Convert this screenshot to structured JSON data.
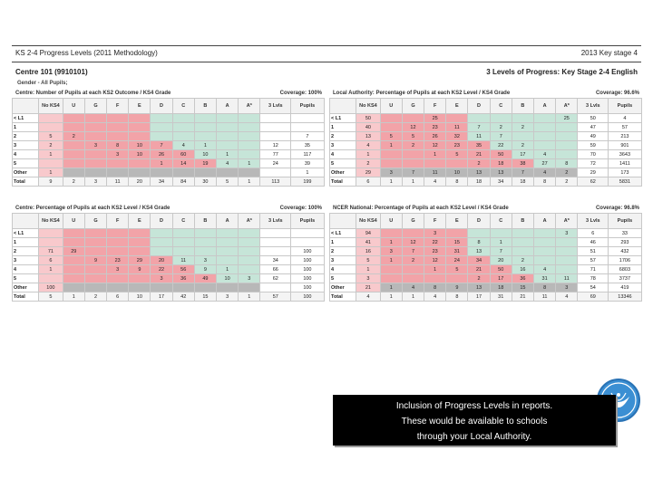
{
  "report": {
    "title": "KS 2-4 Progress Levels (2011 Methodology)",
    "year_stage": "2013  Key stage 4",
    "centre": "Centre 101 (9910101)",
    "progress_title": "3 Levels of Progress: Key Stage 2-4 English",
    "subtitle": "Gender - All Pupils;",
    "colors": {
      "red": "#f2a3a8",
      "pink": "#f8c9cc",
      "green": "#c6e5d8",
      "grey": "#b8b8b8"
    },
    "tables": [
      {
        "title": "Centre: Number of Pupils at each KS2 Outcome / KS4 Grade",
        "coverage": "Coverage: 100%",
        "columns": [
          "",
          "No KS4",
          "U",
          "G",
          "F",
          "E",
          "D",
          "C",
          "B",
          "A",
          "A*",
          "3 Lvls",
          "Pupils"
        ],
        "rows": [
          {
            "label": "< L1",
            "cells": [
              "",
              "",
              "",
              "",
              "",
              "",
              "",
              "",
              "",
              "",
              "",
              ""
            ]
          },
          {
            "label": "1",
            "cells": [
              "",
              "",
              "",
              "",
              "",
              "",
              "",
              "",
              "",
              "",
              "",
              ""
            ]
          },
          {
            "label": "2",
            "cells": [
              "5",
              "2",
              "",
              "",
              "",
              "",
              "",
              "",
              "",
              "",
              "",
              "7"
            ]
          },
          {
            "label": "3",
            "cells": [
              "2",
              "",
              "3",
              "8",
              "10",
              "7",
              "4",
              "1",
              "",
              "",
              "12",
              "35"
            ]
          },
          {
            "label": "4",
            "cells": [
              "1",
              "",
              "",
              "3",
              "10",
              "26",
              "60",
              "10",
              "1",
              "",
              "77",
              "117"
            ]
          },
          {
            "label": "5",
            "cells": [
              "",
              "",
              "",
              "",
              "",
              "1",
              "14",
              "19",
              "4",
              "1",
              "24",
              "39"
            ]
          },
          {
            "label": "Other",
            "cells": [
              "1",
              "",
              "",
              "",
              "",
              "",
              "",
              "",
              "",
              "",
              "",
              "1"
            ]
          },
          {
            "label": "Total",
            "cells": [
              "9",
              "2",
              "3",
              "11",
              "20",
              "34",
              "84",
              "30",
              "5",
              "1",
              "113",
              "199"
            ]
          }
        ]
      },
      {
        "title": "Local Authority: Percentage of Pupils at each KS2 Level / KS4 Grade",
        "coverage": "Coverage: 96.6%",
        "columns": [
          "",
          "No KS4",
          "U",
          "G",
          "F",
          "E",
          "D",
          "C",
          "B",
          "A",
          "A*",
          "3 Lvls",
          "Pupils"
        ],
        "rows": [
          {
            "label": "< L1",
            "cells": [
              "50",
              "",
              "",
              "25",
              "",
              "",
              "",
              "",
              "",
              "25",
              "50",
              "4"
            ]
          },
          {
            "label": "1",
            "cells": [
              "40",
              "",
              "12",
              "23",
              "11",
              "7",
              "2",
              "2",
              "",
              "",
              "47",
              "57"
            ]
          },
          {
            "label": "2",
            "cells": [
              "13",
              "5",
              "5",
              "26",
              "32",
              "11",
              "7",
              "",
              "",
              "",
              "49",
              "213"
            ]
          },
          {
            "label": "3",
            "cells": [
              "4",
              "1",
              "2",
              "12",
              "23",
              "35",
              "22",
              "2",
              "",
              "",
              "59",
              "901"
            ]
          },
          {
            "label": "4",
            "cells": [
              "1",
              "",
              "",
              "1",
              "5",
              "21",
              "50",
              "17",
              "4",
              "",
              "70",
              "3643"
            ]
          },
          {
            "label": "5",
            "cells": [
              "2",
              "",
              "",
              "",
              "",
              "2",
              "18",
              "38",
              "27",
              "8",
              "72",
              "1411"
            ]
          },
          {
            "label": "Other",
            "cells": [
              "29",
              "3",
              "7",
              "11",
              "10",
              "13",
              "13",
              "7",
              "4",
              "2",
              "29",
              "173"
            ]
          },
          {
            "label": "Total",
            "cells": [
              "6",
              "1",
              "1",
              "4",
              "8",
              "18",
              "34",
              "18",
              "8",
              "2",
              "62",
              "5831"
            ]
          }
        ]
      },
      {
        "title": "Centre: Percentage of Pupils at each KS2 Level / KS4 Grade",
        "coverage": "Coverage: 100%",
        "columns": [
          "",
          "No KS4",
          "U",
          "G",
          "F",
          "E",
          "D",
          "C",
          "B",
          "A",
          "A*",
          "3 Lvls",
          "Pupils"
        ],
        "rows": [
          {
            "label": "< L1",
            "cells": [
              "",
              "",
              "",
              "",
              "",
              "",
              "",
              "",
              "",
              "",
              "",
              ""
            ]
          },
          {
            "label": "1",
            "cells": [
              "",
              "",
              "",
              "",
              "",
              "",
              "",
              "",
              "",
              "",
              "",
              ""
            ]
          },
          {
            "label": "2",
            "cells": [
              "71",
              "29",
              "",
              "",
              "",
              "",
              "",
              "",
              "",
              "",
              "",
              "100"
            ]
          },
          {
            "label": "3",
            "cells": [
              "6",
              "",
              "9",
              "23",
              "29",
              "20",
              "11",
              "3",
              "",
              "",
              "34",
              "100"
            ]
          },
          {
            "label": "4",
            "cells": [
              "1",
              "",
              "",
              "3",
              "9",
              "22",
              "56",
              "9",
              "1",
              "",
              "66",
              "100"
            ]
          },
          {
            "label": "5",
            "cells": [
              "",
              "",
              "",
              "",
              "",
              "3",
              "36",
              "49",
              "10",
              "3",
              "62",
              "100"
            ]
          },
          {
            "label": "Other",
            "cells": [
              "100",
              "",
              "",
              "",
              "",
              "",
              "",
              "",
              "",
              "",
              "",
              "100"
            ]
          },
          {
            "label": "Total",
            "cells": [
              "5",
              "1",
              "2",
              "6",
              "10",
              "17",
              "42",
              "15",
              "3",
              "1",
              "57",
              "100"
            ]
          }
        ]
      },
      {
        "title": "NCER National: Percentage of Pupils at each KS2 Level / KS4 Grade",
        "coverage": "Coverage: 96.8%",
        "columns": [
          "",
          "No KS4",
          "U",
          "G",
          "F",
          "E",
          "D",
          "C",
          "B",
          "A",
          "A*",
          "3 Lvls",
          "Pupils"
        ],
        "rows": [
          {
            "label": "< L1",
            "cells": [
              "94",
              "",
              "",
              "3",
              "",
              "",
              "",
              "",
              "",
              "3",
              "6",
              "33"
            ]
          },
          {
            "label": "1",
            "cells": [
              "41",
              "1",
              "12",
              "22",
              "15",
              "8",
              "1",
              "",
              "",
              "",
              "46",
              "293"
            ]
          },
          {
            "label": "2",
            "cells": [
              "16",
              "3",
              "7",
              "23",
              "31",
              "13",
              "7",
              "",
              "",
              "",
              "51",
              "432"
            ]
          },
          {
            "label": "3",
            "cells": [
              "5",
              "1",
              "2",
              "12",
              "24",
              "34",
              "20",
              "2",
              "",
              "",
              "57",
              "1706"
            ]
          },
          {
            "label": "4",
            "cells": [
              "1",
              "",
              "",
              "1",
              "5",
              "21",
              "50",
              "16",
              "4",
              "",
              "71",
              "6803"
            ]
          },
          {
            "label": "5",
            "cells": [
              "3",
              "",
              "",
              "",
              "",
              "2",
              "17",
              "36",
              "31",
              "11",
              "78",
              "3737"
            ]
          },
          {
            "label": "Other",
            "cells": [
              "21",
              "1",
              "4",
              "8",
              "9",
              "13",
              "18",
              "15",
              "8",
              "3",
              "54",
              "419"
            ]
          },
          {
            "label": "Total",
            "cells": [
              "4",
              "1",
              "1",
              "4",
              "8",
              "17",
              "31",
              "21",
              "11",
              "4",
              "69",
              "13346"
            ]
          }
        ]
      }
    ]
  },
  "caption": {
    "line1": "Inclusion of Progress Levels in reports.",
    "line2": "These would be available to schools",
    "line3": "through your Local Authority."
  },
  "logo": {
    "icon": "wings-seal-icon"
  }
}
